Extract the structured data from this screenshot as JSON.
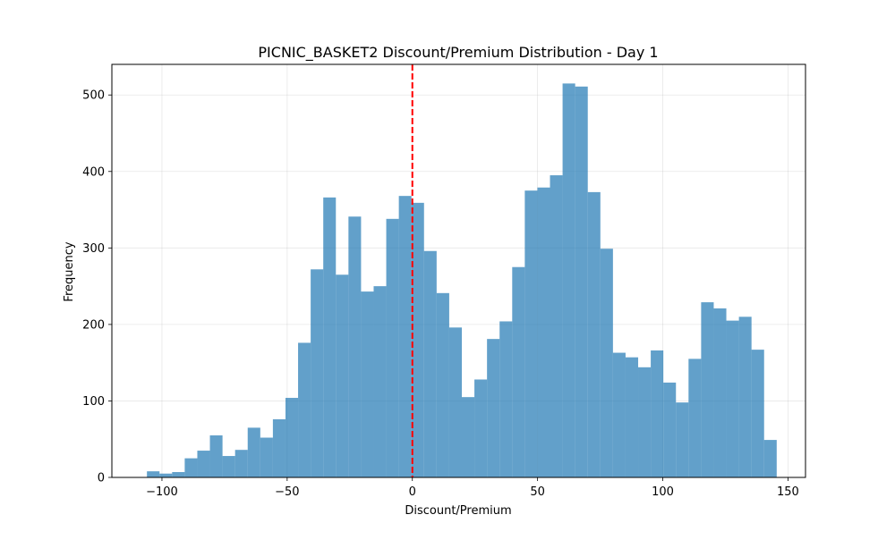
{
  "chart_data": {
    "type": "bar",
    "title": "PICNIC_BASKET2 Discount/Premium Distribution - Day 1",
    "xlabel": "Discount/Premium",
    "ylabel": "Frequency",
    "xlim": [
      -120,
      157
    ],
    "ylim": [
      0,
      540
    ],
    "xticks": [
      -100,
      -50,
      0,
      50,
      100,
      150
    ],
    "xtick_labels": [
      "−100",
      "−50",
      "0",
      "50",
      "100",
      "150"
    ],
    "yticks": [
      0,
      100,
      200,
      300,
      400,
      500
    ],
    "ytick_labels": [
      "0",
      "100",
      "200",
      "300",
      "400",
      "500"
    ],
    "grid": true,
    "bar_color": "#1f77b4",
    "bar_opacity": 0.7,
    "reference_line": {
      "x": 0,
      "color": "#ff0000",
      "style": "dashed"
    },
    "bins": {
      "start": -106,
      "width": 5.03,
      "values": [
        8,
        5,
        7,
        25,
        35,
        55,
        28,
        36,
        65,
        52,
        76,
        104,
        176,
        272,
        366,
        265,
        341,
        243,
        250,
        338,
        368,
        359,
        296,
        241,
        196,
        105,
        128,
        181,
        204,
        275,
        375,
        379,
        395,
        515,
        511,
        373,
        299,
        163,
        157,
        144,
        166,
        124,
        98,
        155,
        229,
        221,
        205,
        210,
        167,
        49
      ]
    }
  }
}
